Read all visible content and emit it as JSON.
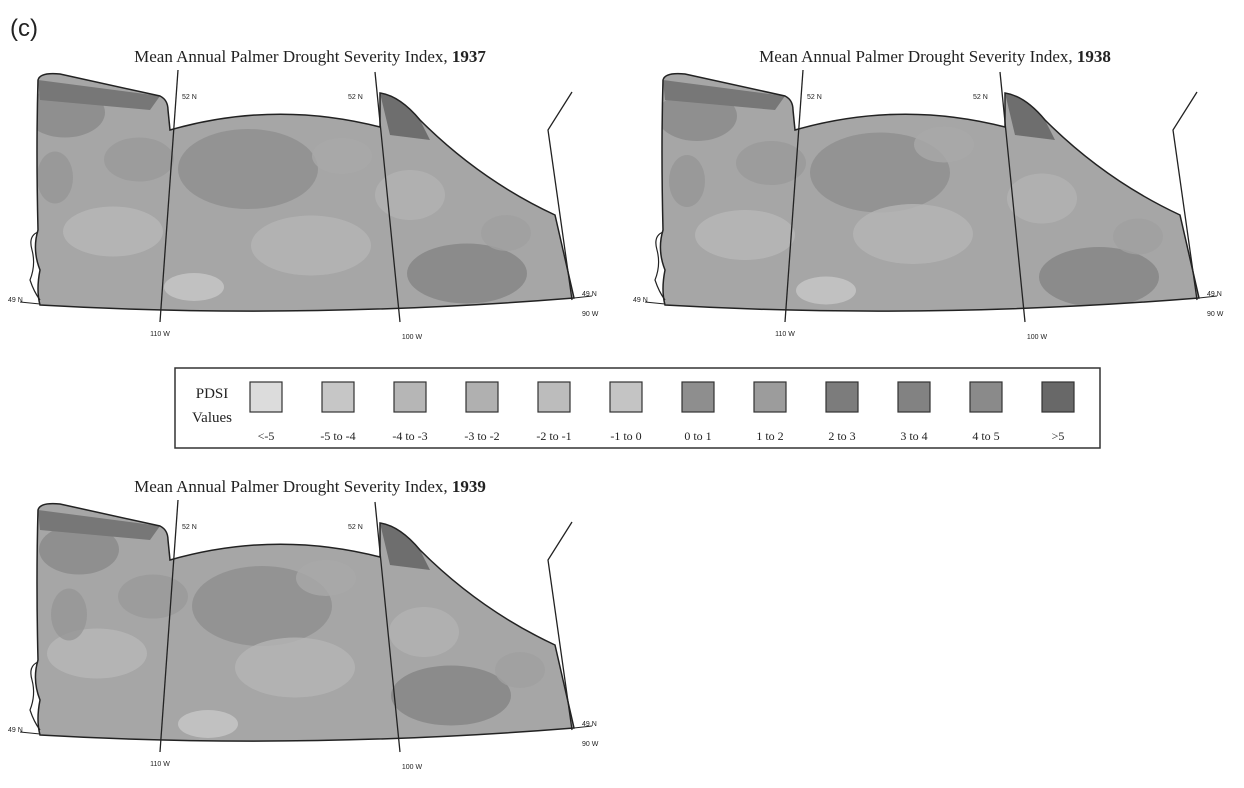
{
  "panel_label": "(c)",
  "maps": [
    {
      "title": "Mean Annual Palmer Drought Severity Index,",
      "year": "1937"
    },
    {
      "title": "Mean Annual Palmer Drought Severity Index,",
      "year": "1938"
    },
    {
      "title": "Mean Annual Palmer Drought Severity Index,",
      "year": "1939"
    }
  ],
  "map_labels": {
    "lat_north": "52 N",
    "lat_south": "49 N",
    "lon_west": "110 W",
    "lon_mid": "100 W",
    "lon_east": "90 W"
  },
  "legend": {
    "title": [
      "PDSI",
      "Values"
    ],
    "items": [
      {
        "label": "<-5",
        "color": "#dcdcdc"
      },
      {
        "label": "-5 to -4",
        "color": "#c6c6c6"
      },
      {
        "label": "-4 to -3",
        "color": "#b6b6b6"
      },
      {
        "label": "-3 to -2",
        "color": "#b0b0b0"
      },
      {
        "label": "-2 to -1",
        "color": "#bcbcbc"
      },
      {
        "label": "-1 to 0",
        "color": "#c4c4c4"
      },
      {
        "label": "0 to 1",
        "color": "#8e8e8e"
      },
      {
        "label": "1 to 2",
        "color": "#9c9c9c"
      },
      {
        "label": "2 to 3",
        "color": "#7c7c7c"
      },
      {
        "label": "3 to 4",
        "color": "#828282"
      },
      {
        "label": "4 to 5",
        "color": "#8a8a8a"
      },
      {
        "label": ">5",
        "color": "#686868"
      }
    ]
  }
}
